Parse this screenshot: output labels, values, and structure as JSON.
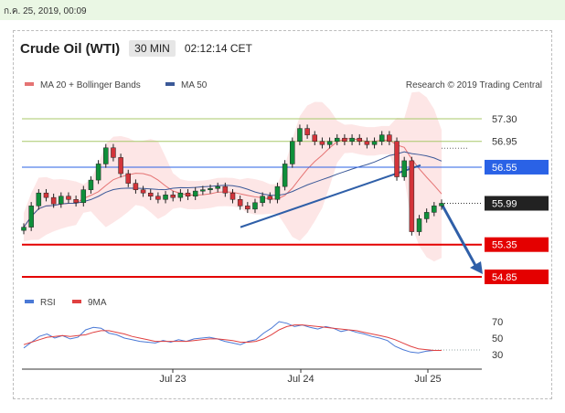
{
  "timestamp": "ก.ค. 25, 2019, 00:09",
  "header": {
    "instrument": "Crude Oil (WTI)",
    "timeframe": "30 MIN",
    "clock": "02:12:14 CET"
  },
  "legend": {
    "ma20_bb": "MA 20 + Bollinger Bands",
    "ma50": "MA 50",
    "credit": "Research © 2019 Trading Central"
  },
  "colors": {
    "ma20": "#e57373",
    "bb_fill": "#fde6e6",
    "ma50": "#3b5998",
    "resistance": "#a8c96a",
    "blue_level": "#2a62e6",
    "red_level": "#e40000",
    "price_box": "#222222",
    "rsi": "#4a79d6",
    "rsi_ma": "#e04040",
    "arrow": "#2f5fa8"
  },
  "chart_data": [
    {
      "type": "line",
      "title": "",
      "ylim": [
        54.7,
        57.8
      ],
      "xticks": [
        "Jul 23",
        "Jul 24",
        "Jul 25"
      ],
      "levels": [
        {
          "value": 57.3,
          "label": "57.30",
          "style": "resistance"
        },
        {
          "value": 56.95,
          "label": "56.95",
          "style": "resistance"
        },
        {
          "value": 56.55,
          "label": "56.55",
          "style": "blue_level"
        },
        {
          "value": 55.99,
          "label": "55.99",
          "style": "price_box"
        },
        {
          "value": 55.35,
          "label": "55.35",
          "style": "red_level"
        },
        {
          "value": 54.85,
          "label": "54.85",
          "style": "red_level"
        }
      ],
      "series": [
        {
          "name": "",
          "values": [
            55.62,
            55.95,
            56.15,
            56.08,
            55.98,
            56.1,
            56.05,
            56.0,
            56.2,
            56.35,
            56.6,
            56.85,
            56.7,
            56.45,
            56.3,
            56.2,
            56.15,
            56.1,
            56.05,
            56.12,
            56.08,
            56.15,
            56.1,
            56.18,
            56.2,
            56.22,
            56.25,
            56.15,
            56.05,
            55.95,
            55.9,
            56.0,
            56.1,
            56.05,
            56.25,
            56.6,
            56.95,
            57.15,
            57.05,
            56.95,
            56.9,
            56.95,
            57.0,
            56.95,
            57.0,
            56.95,
            56.9,
            56.95,
            57.05,
            56.95,
            56.4,
            56.65,
            55.55,
            55.75,
            55.85,
            55.95,
            55.99
          ]
        },
        {
          "name": "MA 20",
          "values": []
        },
        {
          "name": "MA 50",
          "values": []
        }
      ]
    },
    {
      "type": "line",
      "yticks": [
        30,
        50,
        70
      ],
      "ylim": [
        20,
        80
      ],
      "series": [
        {
          "name": "RSI",
          "values": [
            38,
            45,
            52,
            55,
            50,
            53,
            49,
            51,
            60,
            63,
            62,
            56,
            54,
            50,
            48,
            46,
            45,
            44,
            47,
            45,
            48,
            46,
            49,
            50,
            51,
            49,
            46,
            44,
            42,
            46,
            48,
            56,
            62,
            70,
            68,
            64,
            66,
            63,
            61,
            64,
            62,
            58,
            60,
            57,
            55,
            52,
            50,
            47,
            40,
            36,
            33,
            32,
            34,
            35,
            35
          ]
        },
        {
          "name": "9MA",
          "values": [
            42,
            45,
            48,
            51,
            52,
            53,
            52,
            53,
            54,
            57,
            59,
            59,
            57,
            55,
            52,
            50,
            48,
            46,
            46,
            46,
            46,
            46,
            47,
            48,
            49,
            49,
            48,
            47,
            45,
            45,
            46,
            49,
            54,
            60,
            64,
            66,
            66,
            65,
            64,
            63,
            62,
            61,
            60,
            59,
            57,
            55,
            53,
            51,
            48,
            44,
            40,
            37,
            36,
            35,
            35
          ]
        }
      ]
    }
  ]
}
